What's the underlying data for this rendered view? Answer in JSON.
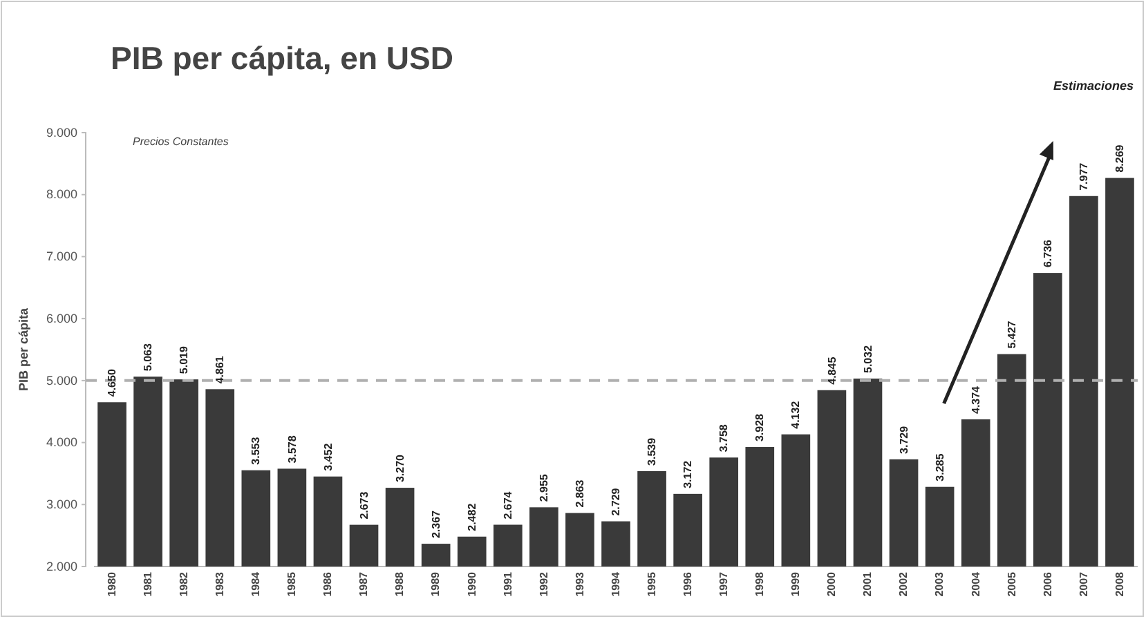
{
  "chart_data": {
    "type": "bar",
    "title": "PIB per cápita, en USD",
    "ylabel": "PIB per cápita",
    "categories": [
      "1980",
      "1981",
      "1982",
      "1983",
      "1984",
      "1985",
      "1986",
      "1987",
      "1988",
      "1989",
      "1990",
      "1991",
      "1992",
      "1993",
      "1994",
      "1995",
      "1996",
      "1997",
      "1998",
      "1999",
      "2000",
      "2001",
      "2002",
      "2003",
      "2004",
      "2005",
      "2006",
      "2007",
      "2008"
    ],
    "values": [
      4650,
      5063,
      5019,
      4861,
      3553,
      3578,
      3452,
      2673,
      3270,
      2367,
      2482,
      2674,
      2955,
      2863,
      2729,
      3539,
      3172,
      3758,
      3928,
      4132,
      4845,
      5032,
      3729,
      3285,
      4374,
      5427,
      6736,
      7977,
      8269
    ],
    "value_labels": [
      "4.650",
      "5.063",
      "5.019",
      "4.861",
      "3.553",
      "3.578",
      "3.452",
      "2.673",
      "3.270",
      "2.367",
      "2.482",
      "2.674",
      "2.955",
      "2.863",
      "2.729",
      "3.539",
      "3.172",
      "3.758",
      "3.928",
      "4.132",
      "4.845",
      "5.032",
      "3.729",
      "3.285",
      "4.374",
      "5.427",
      "6.736",
      "7.977",
      "8.269"
    ],
    "color": "#3a3a3a",
    "ylim": [
      2000,
      9000
    ],
    "yticks": [
      {
        "value": 2000,
        "label": "2.000"
      },
      {
        "value": 3000,
        "label": "3.000"
      },
      {
        "value": 4000,
        "label": "4.000"
      },
      {
        "value": 5000,
        "label": "5.000"
      },
      {
        "value": 6000,
        "label": "6.000"
      },
      {
        "value": 7000,
        "label": "7.000"
      },
      {
        "value": 8000,
        "label": "8.000"
      },
      {
        "value": 9000,
        "label": "9.000"
      }
    ],
    "ref_lines": [
      {
        "axis": "y",
        "value": 5000,
        "color": "#b0b0b0",
        "line_style": "dashed"
      }
    ],
    "annotations": [
      "Precios Constantes",
      "Estimaciones"
    ],
    "grid": false
  }
}
